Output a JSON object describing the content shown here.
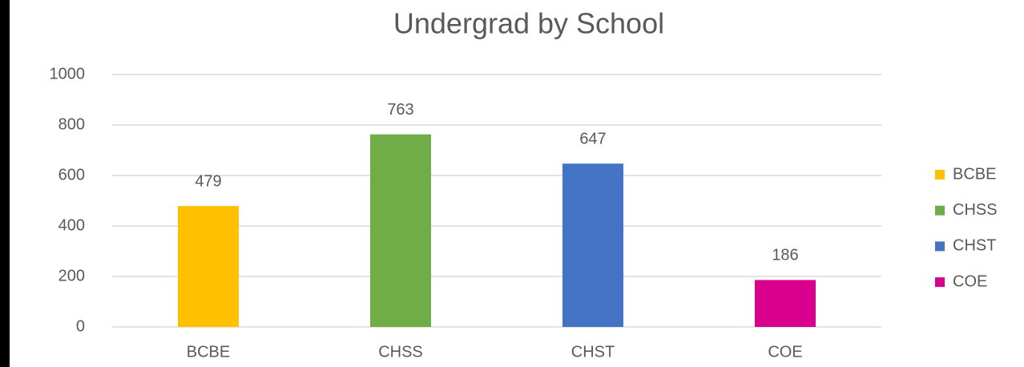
{
  "chart_data": {
    "type": "bar",
    "title": "Undergrad by School",
    "categories": [
      "BCBE",
      "CHSS",
      "CHST",
      "COE"
    ],
    "values": [
      479,
      763,
      647,
      186
    ],
    "colors": [
      "#ffc000",
      "#70ad47",
      "#4472c4",
      "#d9008d"
    ],
    "ylim": [
      0,
      1000
    ],
    "yticks": [
      0,
      200,
      400,
      600,
      800,
      1000
    ],
    "grid": true,
    "legend": "right",
    "data_labels": true
  }
}
